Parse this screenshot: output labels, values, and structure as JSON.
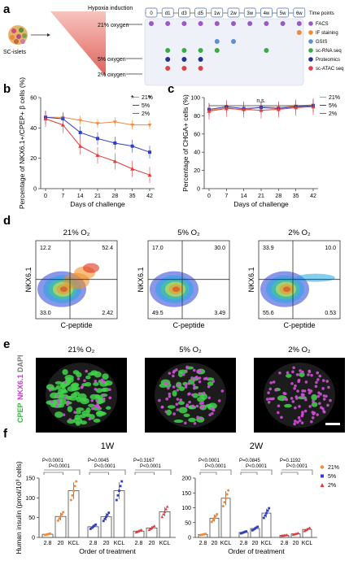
{
  "panel_labels": {
    "a": "a",
    "b": "b",
    "c": "c",
    "d": "d",
    "e": "e",
    "f": "f"
  },
  "panel_a": {
    "title": "Hypoxia induction",
    "cells_label": "SC-islets",
    "conditions": [
      "21% oxygen",
      "5% oxygen",
      "2% oxygen"
    ],
    "timepoints": [
      "0",
      "d1",
      "d3",
      "d5",
      "1w",
      "2w",
      "3w",
      "4w",
      "5w",
      "6w"
    ],
    "timepoints_label": "Time points",
    "assays": [
      {
        "name": "FACS",
        "color": "#9b59c6"
      },
      {
        "name": "IF staining",
        "color": "#f08a3c"
      },
      {
        "name": "GSIS",
        "color": "#5b8fd6"
      },
      {
        "name": "sc-RNA seq",
        "color": "#3daa4a"
      },
      {
        "name": "Proteomics",
        "color": "#27328f"
      },
      {
        "name": "sc-ATAC seq",
        "color": "#d9434a"
      }
    ]
  },
  "chart_data": [
    {
      "panel": "b",
      "type": "line",
      "ylabel": "Percentage of NKX6.1+/CPEP+ β cells (%)",
      "xlabel": "Days of challenge",
      "x": [
        0,
        7,
        14,
        21,
        28,
        35,
        42
      ],
      "ylim": [
        0,
        60
      ],
      "yticks": [
        "0",
        "20",
        "40",
        "60"
      ],
      "significance": [
        {
          "x": 35,
          "mark": "*"
        },
        {
          "x": 42,
          "mark": "*"
        }
      ],
      "series": [
        {
          "name": "21%",
          "color": "#f08a3c",
          "values": [
            47,
            47,
            45,
            43,
            44,
            42,
            42
          ]
        },
        {
          "name": "5%",
          "color": "#2f3fc4",
          "values": [
            47,
            46,
            37,
            33,
            30,
            28,
            24
          ]
        },
        {
          "name": "2%",
          "color": "#e23b3b",
          "values": [
            46,
            42,
            28,
            22,
            18,
            13,
            9
          ]
        }
      ]
    },
    {
      "panel": "c",
      "type": "line",
      "ylabel": "Percentage of CHGA+ cells (%)",
      "xlabel": "Days of challenge",
      "x": [
        0,
        7,
        14,
        21,
        28,
        35,
        42
      ],
      "ylim": [
        0,
        100
      ],
      "yticks": [
        "0",
        "20",
        "40",
        "60",
        "80",
        "100"
      ],
      "annotation": "n.s.",
      "series": [
        {
          "name": "21%",
          "color": "#f08a3c",
          "values": [
            86,
            89,
            86,
            90,
            89,
            91,
            92
          ]
        },
        {
          "name": "5%",
          "color": "#2f3fc4",
          "values": [
            87,
            90,
            88,
            89,
            88,
            90,
            91
          ]
        },
        {
          "name": "2%",
          "color": "#e23b3b",
          "values": [
            85,
            88,
            87,
            86,
            87,
            89,
            90
          ]
        }
      ]
    },
    {
      "panel": "f1",
      "type": "bar",
      "title": "1W",
      "ylabel": "Human insulin (pmol/10³ cells)",
      "xlabel": "Order of treatment",
      "categories": [
        "2.8",
        "20",
        "KCL"
      ],
      "ylim": [
        0,
        150
      ],
      "yticks": [
        "0",
        "50",
        "100",
        "150"
      ],
      "series": [
        {
          "name": "21%",
          "color": "#f08a3c",
          "values": [
            8,
            53,
            118
          ]
        },
        {
          "name": "5%",
          "color": "#2f3fc4",
          "values": [
            27,
            52,
            118
          ]
        },
        {
          "name": "2%",
          "color": "#e23b3b",
          "values": [
            16,
            24,
            65
          ]
        }
      ],
      "pvalues": [
        [
          "P<0.0001",
          "P<0.0001"
        ],
        [
          "P=0.0045",
          "P<0.0001"
        ],
        [
          "P=0.3167",
          "P<0.0001"
        ]
      ]
    },
    {
      "panel": "f2",
      "type": "bar",
      "title": "2W",
      "ylabel": "",
      "xlabel": "Order of treatment",
      "categories": [
        "2.8",
        "20",
        "KCL"
      ],
      "ylim": [
        0,
        200
      ],
      "yticks": [
        "0",
        "50",
        "100",
        "150",
        "200"
      ],
      "series": [
        {
          "name": "21%",
          "color": "#f08a3c",
          "values": [
            10,
            65,
            132
          ]
        },
        {
          "name": "5%",
          "color": "#2f3fc4",
          "values": [
            17,
            30,
            82
          ]
        },
        {
          "name": "2%",
          "color": "#e23b3b",
          "values": [
            7,
            12,
            27
          ]
        }
      ],
      "pvalues": [
        [
          "P<0.0001",
          "P<0.0001"
        ],
        [
          "P=0.0845",
          "P<0.0001"
        ],
        [
          "P=0.1192",
          "P<0.0001"
        ]
      ]
    }
  ],
  "panel_d": {
    "xlabel": "C-peptide",
    "ylabel": "NKX6.1",
    "plots": [
      {
        "title": "21% O₂",
        "q": [
          "12.2",
          "52.4",
          "33.0",
          "2.42"
        ]
      },
      {
        "title": "5% O₂",
        "q": [
          "17.0",
          "30.0",
          "49.5",
          "3.49"
        ]
      },
      {
        "title": "2% O₂",
        "q": [
          "33.9",
          "10.0",
          "55.6",
          "0.53"
        ]
      }
    ]
  },
  "panel_e": {
    "titles": [
      "21% O₂",
      "5% O₂",
      "2% O₂"
    ],
    "side_label_cpep": "CPEP",
    "side_label_nkx": "NKX6.1",
    "side_label_dapi": "DAPI"
  },
  "legend_f": [
    "21%",
    "5%",
    "2%"
  ]
}
